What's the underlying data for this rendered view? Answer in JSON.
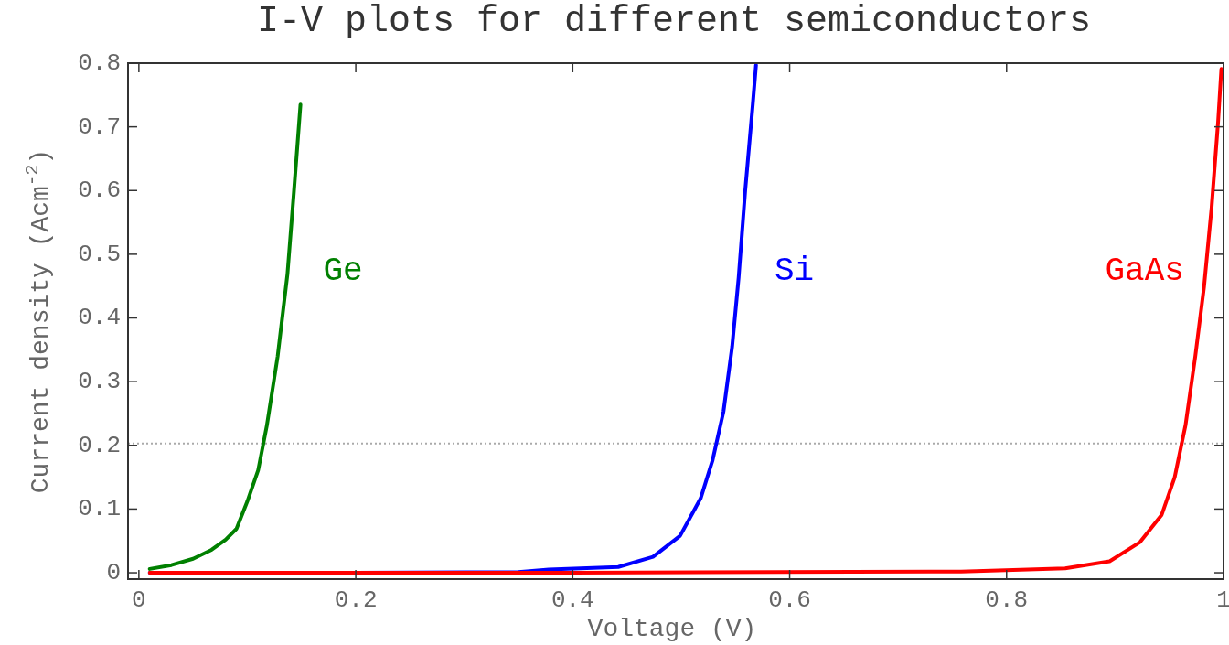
{
  "chart_data": {
    "type": "line",
    "title": "I-V plots for different semiconductors",
    "xlabel": "Voltage (V)",
    "ylabel": "Current density (Acm$^{-2}$)",
    "xlim": [
      -0.01,
      1
    ],
    "ylim": [
      -0.01,
      0.8
    ],
    "xticks": [
      0,
      0.2,
      0.4,
      0.6,
      0.8,
      1
    ],
    "yticks": [
      0,
      0.1,
      0.2,
      0.3,
      0.4,
      0.5,
      0.6,
      0.7,
      0.8
    ],
    "grid": false,
    "legend": false,
    "marker": "none",
    "line_style": "solid",
    "ref_lines": [
      {
        "axis": "y",
        "value": 0.203,
        "color": "#aaaaaa",
        "line_style": "dotted"
      }
    ],
    "series": [
      {
        "name": "Ge",
        "color": "#008000",
        "x": [
          0.01,
          0.03,
          0.05,
          0.067,
          0.08,
          0.09,
          0.1,
          0.11,
          0.118,
          0.128,
          0.137,
          0.143,
          0.149
        ],
        "values": [
          0.006,
          0.012,
          0.022,
          0.036,
          0.052,
          0.069,
          0.112,
          0.161,
          0.231,
          0.34,
          0.469,
          0.599,
          0.735
        ]
      },
      {
        "name": "Si",
        "color": "#0000ff",
        "x": [
          0.01,
          0.2,
          0.35,
          0.378,
          0.442,
          0.474,
          0.499,
          0.518,
          0.529,
          0.539,
          0.547,
          0.553,
          0.559,
          0.566,
          0.569
        ],
        "values": [
          0,
          0,
          0.001,
          0.005,
          0.009,
          0.025,
          0.058,
          0.117,
          0.177,
          0.253,
          0.355,
          0.464,
          0.599,
          0.735,
          0.797
        ]
      },
      {
        "name": "GaAs",
        "color": "#ff0000",
        "x": [
          0.01,
          0.4,
          0.758,
          0.854,
          0.895,
          0.923,
          0.943,
          0.955,
          0.965,
          0.974,
          0.982,
          0.989,
          0.995,
          0.998
        ],
        "values": [
          0,
          0,
          0.002,
          0.007,
          0.018,
          0.048,
          0.091,
          0.15,
          0.232,
          0.34,
          0.448,
          0.573,
          0.708,
          0.791
        ]
      }
    ]
  }
}
